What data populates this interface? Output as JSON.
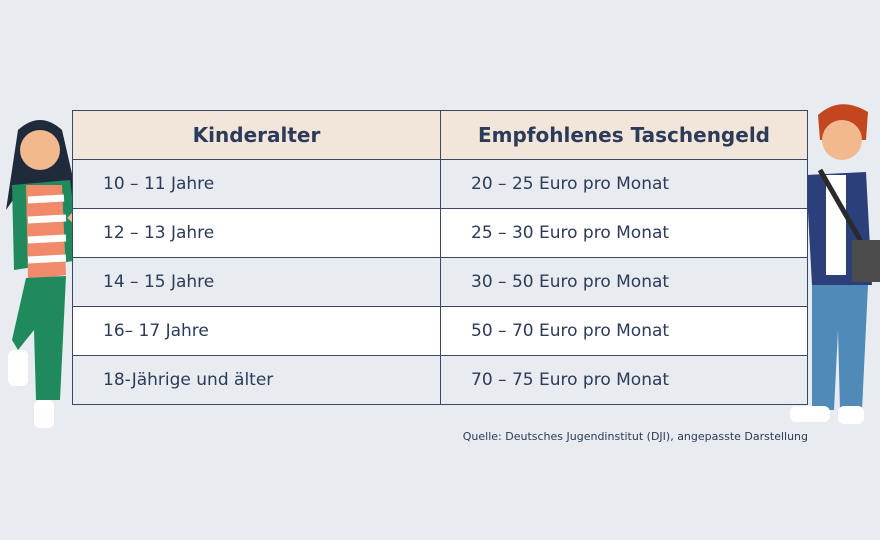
{
  "table": {
    "columns": [
      "Kinderalter",
      "Empfohlenes Taschengeld"
    ],
    "rows": [
      [
        "10 – 11 Jahre",
        "20 – 25 Euro pro Monat"
      ],
      [
        "12 – 13 Jahre",
        "25 – 30 Euro pro Monat"
      ],
      [
        "14 – 15 Jahre",
        "30 – 50 Euro pro Monat"
      ],
      [
        "16– 17 Jahre",
        "50 – 70 Euro pro Monat"
      ],
      [
        "18-Jährige und älter",
        "70 – 75 Euro pro Monat"
      ]
    ]
  },
  "source": "Quelle: Deutsches Jugendinstitut (DJI), angepasste Darstellung"
}
